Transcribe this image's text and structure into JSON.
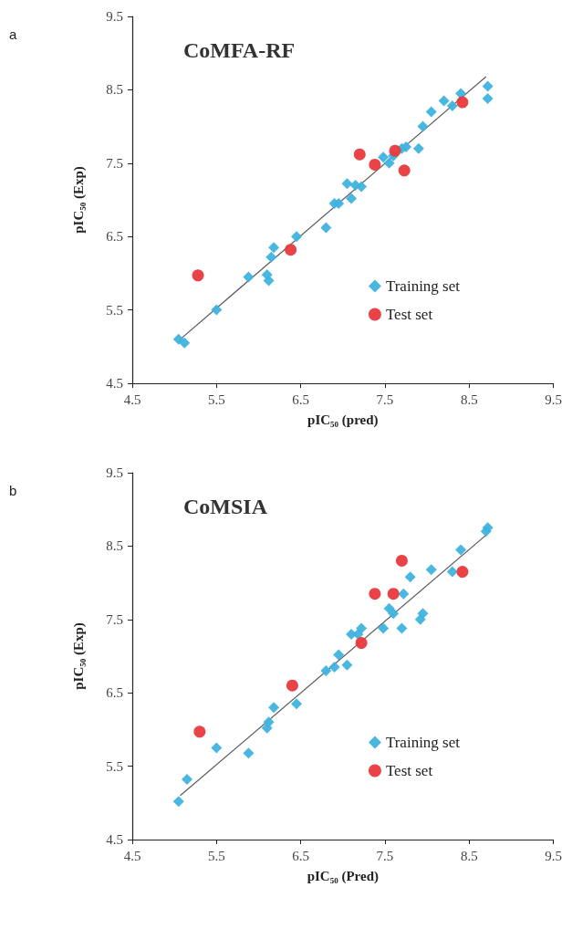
{
  "chart_data": [
    {
      "type": "scatter",
      "title": "CoMFA-RF",
      "xlabel": "pIC₅₀ (pred)",
      "ylabel": "pIC₅₀ (Exp)",
      "annotations": [
        "a"
      ],
      "xlim": [
        4.5,
        9.5
      ],
      "ylim": [
        4.5,
        9.5
      ],
      "xticks": [
        4.5,
        5.5,
        6.5,
        7.5,
        8.5,
        9.5
      ],
      "yticks": [
        4.5,
        5.5,
        6.5,
        7.5,
        8.5,
        9.5
      ],
      "grid": false,
      "legend": "bottom right",
      "series": [
        {
          "name": "Training set",
          "marker": "diamond",
          "color": "#3fb3dd",
          "x": [
            5.05,
            5.12,
            5.5,
            5.88,
            6.1,
            6.12,
            6.15,
            6.18,
            6.45,
            6.8,
            6.9,
            6.95,
            7.05,
            7.1,
            7.15,
            7.22,
            7.48,
            7.55,
            7.6,
            7.7,
            7.75,
            7.9,
            7.95,
            8.05,
            8.2,
            8.3,
            8.4,
            8.72,
            8.72
          ],
          "values": [
            5.1,
            5.05,
            5.5,
            5.95,
            5.98,
            5.9,
            6.22,
            6.35,
            6.5,
            6.62,
            6.95,
            6.95,
            7.22,
            7.02,
            7.2,
            7.18,
            7.58,
            7.5,
            7.6,
            7.7,
            7.72,
            7.7,
            8.0,
            8.2,
            8.35,
            8.28,
            8.45,
            8.55,
            8.38
          ]
        },
        {
          "name": "Test set",
          "marker": "circle",
          "color": "#e8383d",
          "x": [
            5.28,
            6.38,
            7.2,
            7.38,
            7.62,
            7.73,
            8.42
          ],
          "values": [
            5.97,
            6.32,
            7.62,
            7.48,
            7.67,
            7.4,
            8.33
          ]
        },
        {
          "type": "line",
          "marker": "none",
          "color": "#595959",
          "x": [
            5.05,
            8.7
          ],
          "values": [
            5.08,
            8.68
          ]
        }
      ]
    },
    {
      "type": "scatter",
      "title": "CoMSIA",
      "xlabel": "pIC₅₀ (Pred)",
      "ylabel": "pIC₅₀ (Exp)",
      "annotations": [
        "b"
      ],
      "xlim": [
        4.5,
        9.5
      ],
      "ylim": [
        4.5,
        9.5
      ],
      "xticks": [
        4.5,
        5.5,
        6.5,
        7.5,
        8.5,
        9.5
      ],
      "yticks": [
        4.5,
        5.5,
        6.5,
        7.5,
        8.5,
        9.5
      ],
      "grid": false,
      "legend": "bottom right",
      "series": [
        {
          "name": "Training set",
          "marker": "diamond",
          "color": "#3fb3dd",
          "x": [
            5.05,
            5.15,
            5.5,
            5.88,
            6.1,
            6.12,
            6.18,
            6.45,
            6.8,
            6.9,
            6.95,
            7.05,
            7.1,
            7.18,
            7.22,
            7.48,
            7.55,
            7.6,
            7.7,
            7.72,
            7.8,
            7.92,
            7.95,
            8.05,
            8.3,
            8.4,
            8.7,
            8.72
          ],
          "values": [
            5.02,
            5.32,
            5.75,
            5.68,
            6.02,
            6.1,
            6.3,
            6.35,
            6.8,
            6.85,
            7.02,
            6.88,
            7.3,
            7.3,
            7.38,
            7.38,
            7.65,
            7.58,
            7.38,
            7.85,
            8.08,
            7.5,
            7.58,
            8.18,
            8.15,
            8.45,
            8.7,
            8.75
          ]
        },
        {
          "name": "Test set",
          "marker": "circle",
          "color": "#e8383d",
          "x": [
            5.3,
            6.4,
            7.22,
            7.38,
            7.6,
            7.7,
            8.42
          ],
          "values": [
            5.97,
            6.6,
            7.18,
            7.85,
            7.85,
            8.3,
            8.15
          ]
        },
        {
          "type": "line",
          "marker": "none",
          "color": "#595959",
          "x": [
            5.07,
            8.7
          ],
          "values": [
            5.1,
            8.65
          ]
        }
      ]
    }
  ]
}
